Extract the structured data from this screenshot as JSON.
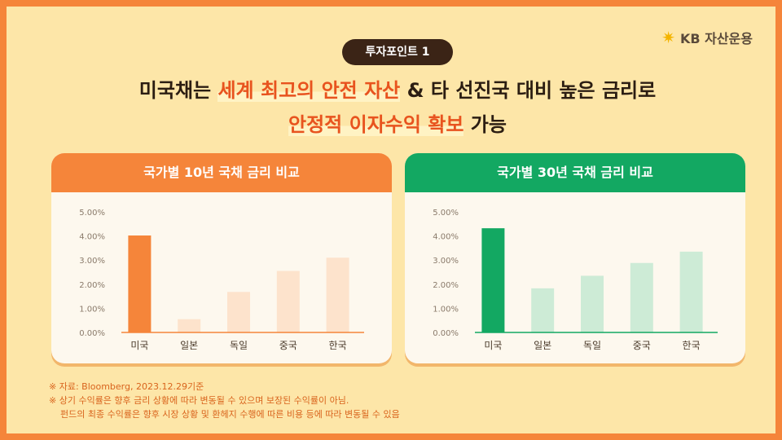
{
  "brand": {
    "logo_text": "KB 자산운용"
  },
  "badge": "투자포인트 1",
  "headline": {
    "line1_a": "미국채는 ",
    "line1_hl": "세계 최고의 안전 자산",
    "line1_b": " & 타 선진국 대비 높은 금리로",
    "line2_hl": "안정적 이자수익 확보",
    "line2_b": " 가능"
  },
  "chart_data": [
    {
      "type": "bar",
      "title": "국가별 10년 국채 금리 비교",
      "categories": [
        "미국",
        "일본",
        "독일",
        "중국",
        "한국"
      ],
      "values": [
        4.02,
        0.55,
        1.68,
        2.55,
        3.1
      ],
      "yticks": [
        "0.00%",
        "1.00%",
        "2.00%",
        "3.00%",
        "4.00%",
        "5.00%"
      ],
      "ylim": [
        0,
        5
      ],
      "colors": {
        "highlight": "#f5853a",
        "other": "#fde3cc",
        "axis": "#f5853a"
      }
    },
    {
      "type": "bar",
      "title": "국가별 30년 국채 금리 비교",
      "categories": [
        "미국",
        "일본",
        "독일",
        "중국",
        "한국"
      ],
      "values": [
        4.32,
        1.83,
        2.35,
        2.88,
        3.35
      ],
      "yticks": [
        "0.00%",
        "1.00%",
        "2.00%",
        "3.00%",
        "4.00%",
        "5.00%"
      ],
      "ylim": [
        0,
        5
      ],
      "colors": {
        "highlight": "#13a862",
        "other": "#cdebd6",
        "axis": "#13a862"
      }
    }
  ],
  "notes": [
    "※ 자료: Bloomberg, 2023.12.29기준",
    "※ 상기 수익률은 향후 금리 상황에 따라 변동될 수 있으며 보장된 수익률이 아님.",
    "펀드의 최종 수익률은 향후 시장 상황 및 환헤지 수행에 따른 비용 등에 따라 변동될 수 있음"
  ]
}
